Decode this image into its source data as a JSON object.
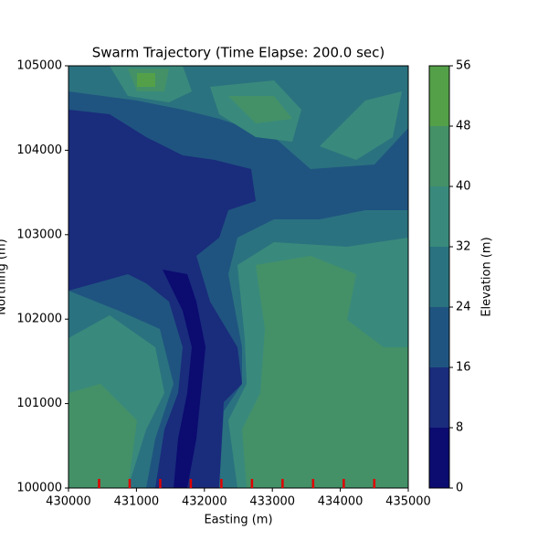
{
  "chart_data": {
    "type": "contour",
    "title": "Swarm Trajectory (Time Elapse: 200.0 sec)",
    "xlabel": "Easting (m)",
    "ylabel": "Northing (m)",
    "colorbar_label": "Elevation (m)",
    "xlim": [
      430000,
      435000
    ],
    "ylim": [
      100000,
      105000
    ],
    "xticks": [
      430000,
      431000,
      432000,
      433000,
      434000,
      435000
    ],
    "yticks": [
      100000,
      101000,
      102000,
      103000,
      104000,
      105000
    ],
    "levels": [
      0,
      8,
      16,
      24,
      32,
      40,
      48,
      56
    ],
    "colors": [
      "#0b0b70",
      "#1a2c7c",
      "#1f5480",
      "#2b7280",
      "#398a7c",
      "#449168",
      "#54a048"
    ],
    "series": [
      {
        "color": "#e00000",
        "x": [
          430450,
          430900,
          431350,
          431800,
          432250,
          432700,
          433150,
          433600,
          434050,
          434500
        ],
        "y": [
          100000,
          100000,
          100000,
          100000,
          100000,
          100000,
          100000,
          100000,
          100000,
          100000
        ]
      }
    ]
  }
}
